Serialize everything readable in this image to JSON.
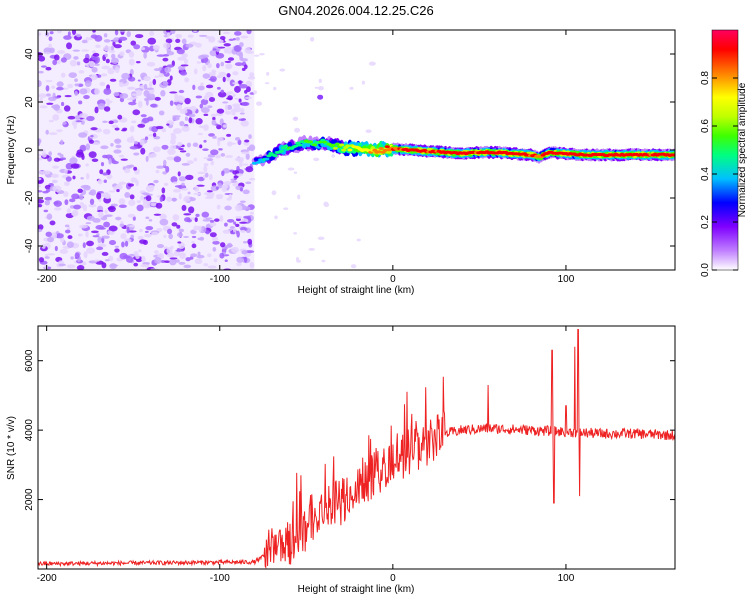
{
  "title": "GN04.2026.004.12.25.C26",
  "chart_data": [
    {
      "type": "heatmap",
      "title": "GN04.2026.004.12.25.C26",
      "xlabel": "Height of straight line (km)",
      "ylabel": "Frequency (Hz)",
      "xlim": [
        -205,
        163
      ],
      "ylim": [
        -50,
        50
      ],
      "xticks": [
        -200,
        -100,
        0,
        100
      ],
      "yticks": [
        -40,
        -20,
        0,
        20,
        40
      ],
      "xtick_labels": [
        "-200",
        "-100",
        "0",
        "100"
      ],
      "ytick_labels": [
        "-40",
        "-20",
        "0",
        "20",
        "40"
      ],
      "colorbar": {
        "label": "Normalized spectral amplitude",
        "range": [
          0,
          1
        ],
        "ticks": [
          0,
          0.2,
          0.4,
          0.6,
          0.8
        ],
        "tick_labels": [
          "0.0",
          "0.2",
          "0.4",
          "0.6",
          "0.8"
        ],
        "colors": [
          "#ffffff",
          "#c080ff",
          "#8000ff",
          "#0000ff",
          "#00c0ff",
          "#00ff80",
          "#40ff00",
          "#c0ff00",
          "#ffff00",
          "#ff8000",
          "#ff0000",
          "#ff0060"
        ]
      },
      "noise_region_x": [
        -205,
        -80
      ],
      "ridge": {
        "x": [
          -80,
          -75,
          -70,
          -65,
          -60,
          -55,
          -50,
          -45,
          -40,
          -35,
          -30,
          -20,
          -10,
          0,
          10,
          20,
          30,
          40,
          50,
          60,
          70,
          80,
          85,
          90,
          100,
          110,
          120,
          130,
          140,
          150,
          163
        ],
        "y": [
          -5,
          -4,
          -2,
          0,
          1,
          2,
          3,
          2,
          3,
          2,
          1,
          0.5,
          0,
          0.5,
          0,
          -0.5,
          -1,
          -1.5,
          -1,
          -1,
          -1.5,
          -2,
          -3,
          -1,
          -1.5,
          -2,
          -2,
          -2,
          -2,
          -2,
          -2
        ],
        "amplitude": [
          0.3,
          0.4,
          0.45,
          0.5,
          0.5,
          0.45,
          0.5,
          0.5,
          0.5,
          0.55,
          0.6,
          0.7,
          0.8,
          0.85,
          0.9,
          0.9,
          0.9,
          0.9,
          0.9,
          0.9,
          0.9,
          0.9,
          0.85,
          0.9,
          0.9,
          0.9,
          0.9,
          0.9,
          0.9,
          0.9,
          0.9
        ]
      }
    },
    {
      "type": "line",
      "xlabel": "Height of straight line (km)",
      "ylabel": "SNR (10 * v/v)",
      "xlim": [
        -205,
        163
      ],
      "ylim": [
        0,
        7000
      ],
      "xticks": [
        -200,
        -100,
        0,
        100
      ],
      "yticks": [
        2000,
        4000,
        6000
      ],
      "xtick_labels": [
        "-200",
        "-100",
        "0",
        "100"
      ],
      "ytick_labels": [
        "2000",
        "4000",
        "6000"
      ],
      "series": [
        {
          "name": "SNR",
          "color": "#ee2222",
          "trend_x": [
            -205,
            -80,
            -70,
            -60,
            -50,
            -40,
            -30,
            -20,
            -10,
            0,
            10,
            20,
            30,
            40,
            55,
            80,
            100,
            120,
            140,
            163
          ],
          "trend_y": [
            150,
            200,
            500,
            800,
            1200,
            1600,
            2000,
            2400,
            2800,
            3100,
            3400,
            3700,
            3900,
            4000,
            4050,
            4000,
            3950,
            3900,
            3900,
            3850
          ],
          "spikes_x": [
            55,
            92,
            93,
            100,
            105,
            107,
            108
          ],
          "spikes_y": [
            5300,
            6300,
            1900,
            4700,
            6400,
            6900,
            2100
          ]
        }
      ]
    }
  ]
}
